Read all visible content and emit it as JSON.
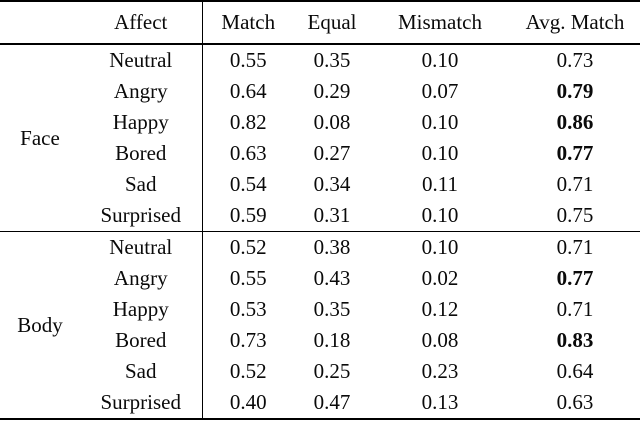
{
  "colors": {
    "background": "#ffffff",
    "text": "#0a0a0a",
    "rule": "#000000"
  },
  "table": {
    "headers": {
      "group": "",
      "affect": "Affect",
      "match": "Match",
      "equal": "Equal",
      "mismatch": "Mismatch",
      "avg_match": "Avg. Match"
    },
    "groups": [
      {
        "label": "Face",
        "rows": [
          {
            "affect": "Neutral",
            "match": "0.55",
            "equal": "0.35",
            "mismatch": "0.10",
            "avg_match": "0.73",
            "avg_bold": false
          },
          {
            "affect": "Angry",
            "match": "0.64",
            "equal": "0.29",
            "mismatch": "0.07",
            "avg_match": "0.79",
            "avg_bold": true
          },
          {
            "affect": "Happy",
            "match": "0.82",
            "equal": "0.08",
            "mismatch": "0.10",
            "avg_match": "0.86",
            "avg_bold": true
          },
          {
            "affect": "Bored",
            "match": "0.63",
            "equal": "0.27",
            "mismatch": "0.10",
            "avg_match": "0.77",
            "avg_bold": true
          },
          {
            "affect": "Sad",
            "match": "0.54",
            "equal": "0.34",
            "mismatch": "0.11",
            "avg_match": "0.71",
            "avg_bold": false
          },
          {
            "affect": "Surprised",
            "match": "0.59",
            "equal": "0.31",
            "mismatch": "0.10",
            "avg_match": "0.75",
            "avg_bold": false
          }
        ]
      },
      {
        "label": "Body",
        "rows": [
          {
            "affect": "Neutral",
            "match": "0.52",
            "equal": "0.38",
            "mismatch": "0.10",
            "avg_match": "0.71",
            "avg_bold": false
          },
          {
            "affect": "Angry",
            "match": "0.55",
            "equal": "0.43",
            "mismatch": "0.02",
            "avg_match": "0.77",
            "avg_bold": true
          },
          {
            "affect": "Happy",
            "match": "0.53",
            "equal": "0.35",
            "mismatch": "0.12",
            "avg_match": "0.71",
            "avg_bold": false
          },
          {
            "affect": "Bored",
            "match": "0.73",
            "equal": "0.18",
            "mismatch": "0.08",
            "avg_match": "0.83",
            "avg_bold": true
          },
          {
            "affect": "Sad",
            "match": "0.52",
            "equal": "0.25",
            "mismatch": "0.23",
            "avg_match": "0.64",
            "avg_bold": false
          },
          {
            "affect": "Surprised",
            "match": "0.40",
            "equal": "0.47",
            "mismatch": "0.13",
            "avg_match": "0.63",
            "avg_bold": false
          }
        ]
      }
    ]
  }
}
